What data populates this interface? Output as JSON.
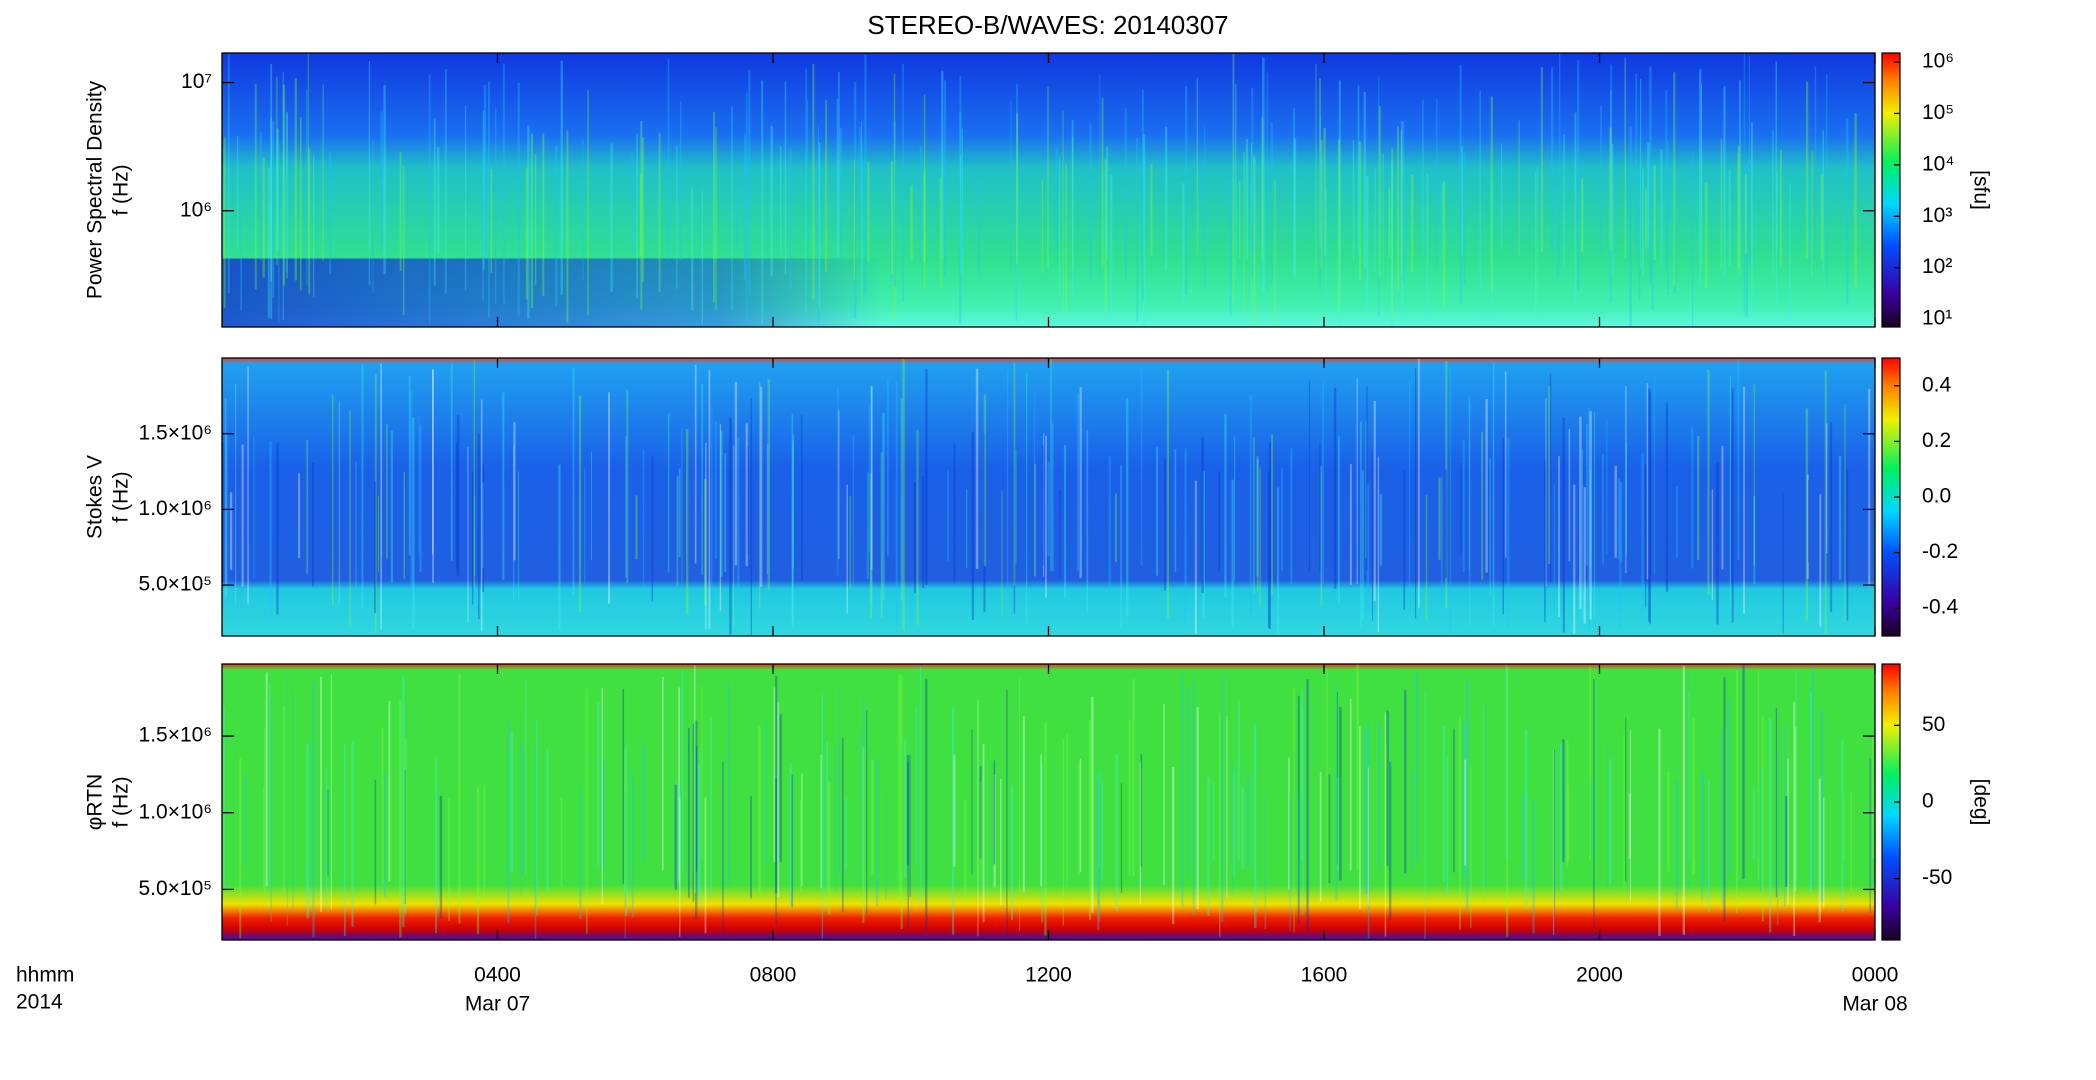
{
  "title": "STEREO-B/WAVES: 20140307",
  "time_labels": [
    "hhmm",
    "2014"
  ],
  "chart_data": [
    {
      "type": "spectrogram",
      "ylabel": [
        "Power Spectral Density",
        "f (Hz)"
      ],
      "ylog": true,
      "ylim": [
        124000,
        17000000
      ],
      "yticks": [
        {
          "value": 1000000,
          "label": "10⁶"
        },
        {
          "value": 10000000,
          "label": "10⁷"
        }
      ],
      "zlog": true,
      "zlim": [
        7,
        1500000
      ],
      "zticks": [
        {
          "value": 10,
          "label": "10¹"
        },
        {
          "value": 100,
          "label": "10²"
        },
        {
          "value": 1000,
          "label": "10³"
        },
        {
          "value": 10000,
          "label": "10⁴"
        },
        {
          "value": 100000,
          "label": "10⁵"
        },
        {
          "value": 1000000,
          "label": "10⁶"
        }
      ],
      "zlabel": "[sfu]"
    },
    {
      "type": "spectrogram",
      "ylabel": [
        "Stokes V",
        "f (Hz)"
      ],
      "ylog": false,
      "ylim": [
        164000,
        2000000
      ],
      "yticks": [
        {
          "value": 500000,
          "label": "5.0×10⁵"
        },
        {
          "value": 1000000,
          "label": "1.0×10⁶"
        },
        {
          "value": 1500000,
          "label": "1.5×10⁶"
        }
      ],
      "zlog": false,
      "zlim": [
        -0.5,
        0.5
      ],
      "zticks": [
        -0.4,
        -0.2,
        {
          "value": 0,
          "label": "0.0"
        },
        0.2,
        0.4
      ]
    },
    {
      "type": "spectrogram",
      "ylabel": [
        "φRTN",
        "f (Hz)"
      ],
      "ylog": false,
      "ylim": [
        170000,
        1970000
      ],
      "yticks": [
        {
          "value": 500000,
          "label": "5.0×10⁵"
        },
        {
          "value": 1000000,
          "label": "1.0×10⁶"
        },
        {
          "value": 1500000,
          "label": "1.5×10⁶"
        }
      ],
      "zlog": false,
      "zlim": [
        -90,
        90
      ],
      "zticks": [
        -50,
        0,
        50
      ],
      "zlabel": "[deg]",
      "xlim": [
        0,
        24
      ],
      "xticks": [
        {
          "value": 4,
          "label": "0400"
        },
        {
          "value": 8,
          "label": "0800"
        },
        {
          "value": 12,
          "label": "1200"
        },
        {
          "value": 16,
          "label": "1600"
        },
        {
          "value": 20,
          "label": "2000"
        },
        {
          "value": 24,
          "label": "0000"
        }
      ],
      "xdates": [
        {
          "value": 4,
          "label": "Mar 07"
        },
        {
          "value": 24,
          "label": "Mar 08"
        }
      ]
    }
  ]
}
